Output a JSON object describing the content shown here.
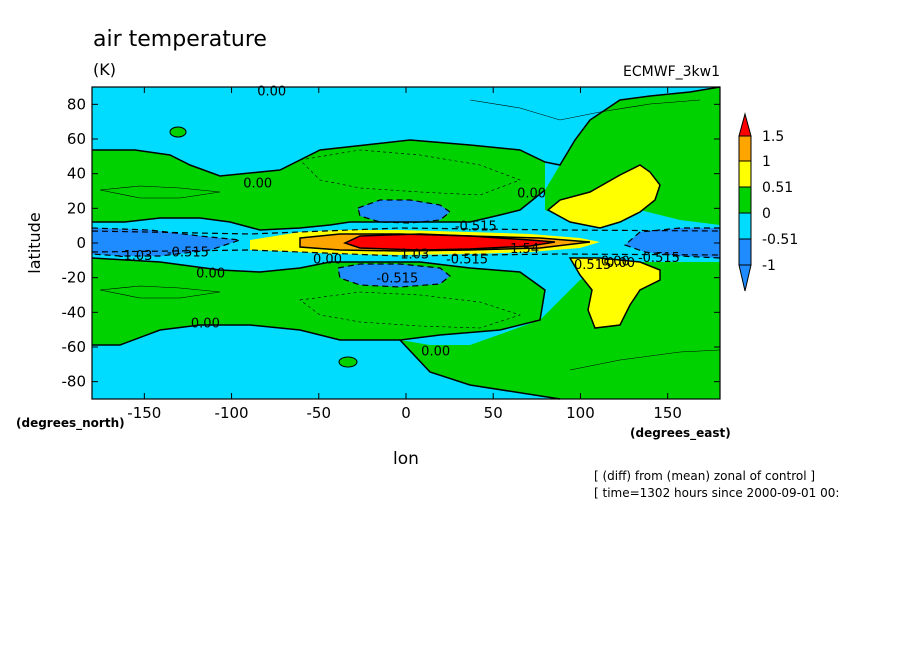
{
  "chart_data": {
    "type": "heatmap",
    "title": "air temperature",
    "units": "(K)",
    "dataset": "ECMWF_3kw1",
    "xlabel": "lon",
    "ylabel": "latitude",
    "x_units": "(degrees_east)",
    "y_units": "(degrees_north)",
    "xlim": [
      -180,
      180
    ],
    "ylim": [
      -90,
      90
    ],
    "x_ticks": [
      "-150",
      "-100",
      "-50",
      "0",
      "50",
      "100",
      "150"
    ],
    "x_tick_values": [
      -150,
      -100,
      -50,
      0,
      50,
      100,
      150
    ],
    "y_ticks": [
      "80",
      "60",
      "40",
      "20",
      "0",
      "-20",
      "-40",
      "-60",
      "-80"
    ],
    "y_tick_values": [
      80,
      60,
      40,
      20,
      0,
      -20,
      -40,
      -60,
      -80
    ],
    "colorbar": {
      "labels": [
        "1.5",
        "1",
        "0.51",
        "0",
        "-0.51",
        "-1"
      ],
      "levels": [
        1.5,
        1,
        0.51,
        0,
        -0.51,
        -1
      ],
      "colors": [
        "#1e8cff",
        "#00dcff",
        "#00d200",
        "#ffff00",
        "#ffa500",
        "#ff0000"
      ]
    },
    "contour_labels": [
      {
        "text": "0.00",
        "lon": -77,
        "lat": 88
      },
      {
        "text": "0.00",
        "lon": -85,
        "lat": 35
      },
      {
        "text": "0.00",
        "lon": 72,
        "lat": 29
      },
      {
        "text": "0.00",
        "lon": -112,
        "lat": -17
      },
      {
        "text": "0.00",
        "lon": -115,
        "lat": -46
      },
      {
        "text": "0.00",
        "lon": -45,
        "lat": -9
      },
      {
        "text": "0.00",
        "lon": 17,
        "lat": -62
      },
      {
        "text": "0.00",
        "lon": 123,
        "lat": -11
      },
      {
        "text": "0.00",
        "lon": 120,
        "lat": -10
      },
      {
        "text": "-1.03",
        "lon": -155,
        "lat": -7
      },
      {
        "text": "-0.515",
        "lon": -125,
        "lat": -5
      },
      {
        "text": "-0.515",
        "lon": -5,
        "lat": -20
      },
      {
        "text": "-0.515",
        "lon": 40,
        "lat": 10
      },
      {
        "text": "-0.515",
        "lon": 35,
        "lat": -9
      },
      {
        "text": "0.515",
        "lon": 107,
        "lat": -12
      },
      {
        "text": "1.03",
        "lon": 5,
        "lat": -6
      },
      {
        "text": "1.54",
        "lon": 68,
        "lat": -3
      },
      {
        "text": "-0.515",
        "lon": 145,
        "lat": -8
      }
    ],
    "footnotes": [
      "[ (diff) from (mean) zonal of control ]",
      "[ time=1302 hours since 2000-09-01 00:"
    ]
  }
}
